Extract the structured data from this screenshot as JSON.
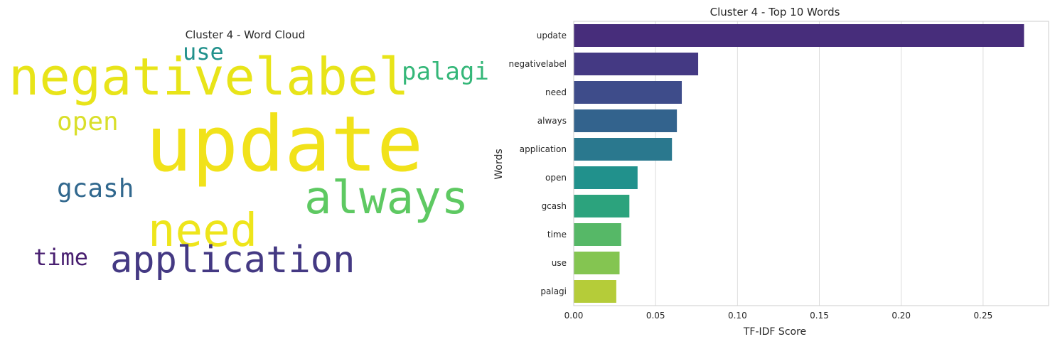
{
  "chart_data": [
    {
      "type": "wordcloud",
      "title": "Cluster 4 - Word Cloud",
      "words": [
        {
          "text": "update",
          "color": "#f1e21a"
        },
        {
          "text": "negativelabel",
          "color": "#e8e419"
        },
        {
          "text": "always",
          "color": "#5ec962"
        },
        {
          "text": "need",
          "color": "#eee51b"
        },
        {
          "text": "application",
          "color": "#443983"
        },
        {
          "text": "palagi",
          "color": "#35b779"
        },
        {
          "text": "use",
          "color": "#21918c"
        },
        {
          "text": "open",
          "color": "#d9df2a"
        },
        {
          "text": "gcash",
          "color": "#31688e"
        },
        {
          "text": "time",
          "color": "#481f70"
        }
      ]
    },
    {
      "type": "bar",
      "orientation": "horizontal",
      "title": "Cluster 4 - Top 10 Words",
      "xlabel": "TF-IDF Score",
      "ylabel": "Words",
      "categories": [
        "update",
        "negativelabel",
        "need",
        "always",
        "application",
        "open",
        "gcash",
        "time",
        "use",
        "palagi"
      ],
      "values": [
        0.275,
        0.076,
        0.066,
        0.063,
        0.06,
        0.039,
        0.034,
        0.029,
        0.028,
        0.026
      ],
      "colors": [
        "#472d7b",
        "#443983",
        "#3e4c8a",
        "#33638d",
        "#2a788e",
        "#21918c",
        "#2ca37d",
        "#56b867",
        "#84c551",
        "#b5cc39"
      ],
      "xlim": [
        0,
        0.29
      ],
      "xticks": [
        "0.00",
        "0.05",
        "0.10",
        "0.15",
        "0.20",
        "0.25"
      ],
      "grid": "x"
    }
  ]
}
